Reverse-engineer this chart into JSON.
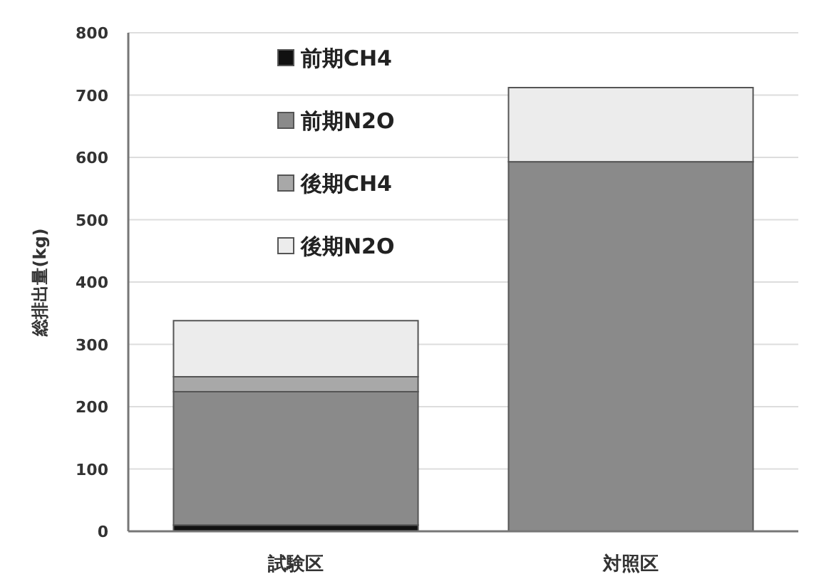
{
  "chart_data": {
    "type": "bar",
    "stacked": true,
    "ylabel": "総排出量(kg)",
    "categories": [
      "試験区",
      "対照区"
    ],
    "series": [
      {
        "name": "前期CH4",
        "color": "#111111",
        "values": [
          10,
          0
        ]
      },
      {
        "name": "前期N2O",
        "color": "#8a8a8a",
        "values": [
          214,
          593
        ]
      },
      {
        "name": "後期CH4",
        "color": "#a8a8a8",
        "values": [
          24,
          0
        ]
      },
      {
        "name": "後期N2O",
        "color": "#ececec",
        "values": [
          90,
          119
        ]
      }
    ],
    "ylim": [
      0,
      800
    ],
    "yticks": [
      0,
      100,
      200,
      300,
      400,
      500,
      600,
      700,
      800
    ],
    "grid": "y",
    "legend": "top"
  }
}
